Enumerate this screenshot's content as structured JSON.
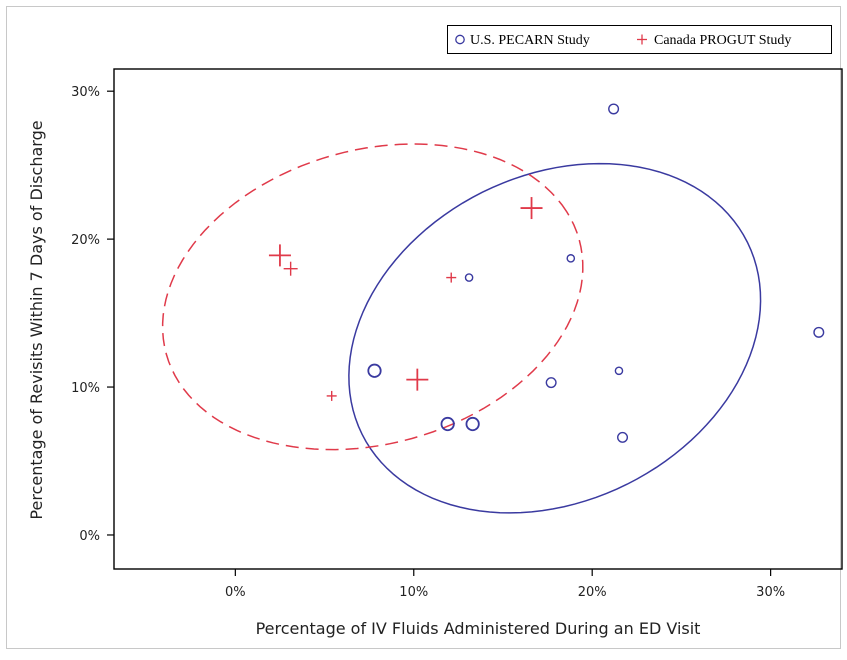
{
  "chart_data": {
    "type": "scatter",
    "title": "",
    "xlabel": "Percentage of IV Fluids Administered During an ED Visit",
    "ylabel": "Percentage of Revisits Within 7 Days of Discharge",
    "xlim": [
      -6.8,
      34
    ],
    "ylim": [
      -2.3,
      31.5
    ],
    "x_ticks": [
      0,
      10,
      20,
      30
    ],
    "x_tick_labels": [
      "0%",
      "10%",
      "20%",
      "30%"
    ],
    "y_ticks": [
      0,
      10,
      20,
      30
    ],
    "y_tick_labels": [
      "0%",
      "10%",
      "20%",
      "30%"
    ],
    "grid": false,
    "legend_position": "top-right",
    "series": [
      {
        "name": "U.S. PECARN Study",
        "marker": "circle",
        "color": "#3a3aa0",
        "points": [
          {
            "x": 21.2,
            "y": 28.8,
            "size": 2
          },
          {
            "x": 18.8,
            "y": 18.7,
            "size": 1
          },
          {
            "x": 13.1,
            "y": 17.4,
            "size": 1
          },
          {
            "x": 32.7,
            "y": 13.7,
            "size": 2
          },
          {
            "x": 7.8,
            "y": 11.1,
            "size": 3
          },
          {
            "x": 21.5,
            "y": 11.1,
            "size": 1
          },
          {
            "x": 17.7,
            "y": 10.3,
            "size": 2
          },
          {
            "x": 11.9,
            "y": 7.5,
            "size": 3
          },
          {
            "x": 13.3,
            "y": 7.5,
            "size": 3
          },
          {
            "x": 21.7,
            "y": 6.6,
            "size": 2
          }
        ]
      },
      {
        "name": "Canada PROGUT Study",
        "marker": "plus",
        "color": "#e03a4a",
        "points": [
          {
            "x": 2.5,
            "y": 18.9,
            "size": 3
          },
          {
            "x": 3.1,
            "y": 18.0,
            "size": 2
          },
          {
            "x": 16.6,
            "y": 22.1,
            "size": 3
          },
          {
            "x": 12.1,
            "y": 17.4,
            "size": 1
          },
          {
            "x": 10.2,
            "y": 10.5,
            "size": 3
          },
          {
            "x": 5.4,
            "y": 9.4,
            "size": 1
          }
        ]
      }
    ],
    "ellipses": [
      {
        "series": "U.S. PECARN Study",
        "style": "solid",
        "color": "#3a3aa0",
        "center": [
          17.9,
          13.3
        ],
        "semi_axes": [
          12.9,
          10.3
        ],
        "rotation_deg": 48
      },
      {
        "series": "Canada PROGUT Study",
        "style": "dashed",
        "color": "#e03a4a",
        "center": [
          7.7,
          16.1
        ],
        "semi_axes": [
          12.3,
          9.7
        ],
        "rotation_deg": 28
      }
    ]
  }
}
